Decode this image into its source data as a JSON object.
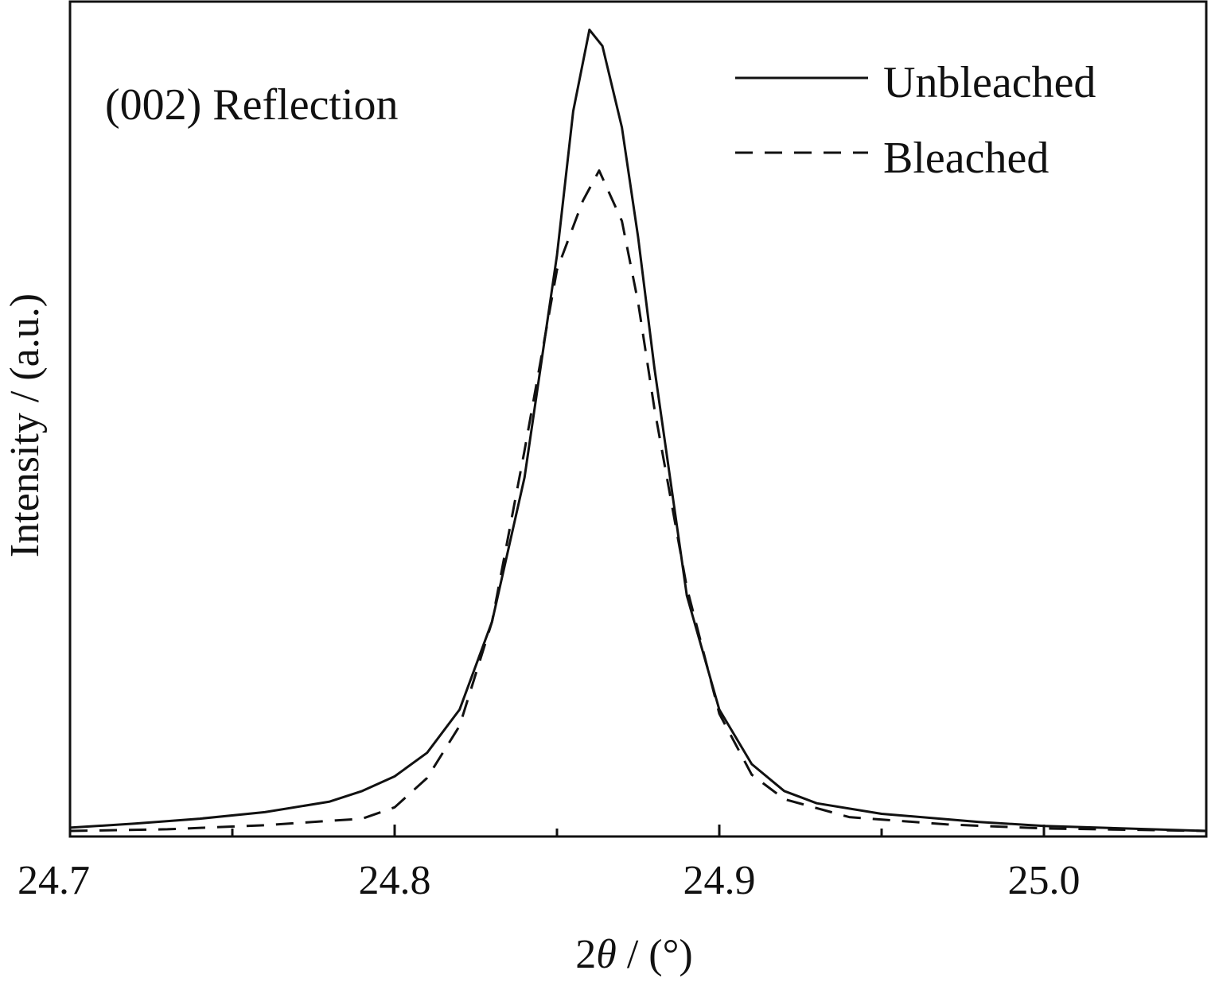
{
  "chart_data": {
    "type": "line",
    "title": "",
    "annotation": "(002) Reflection",
    "xlabel": "2θ / (°)",
    "xlabel_parts": {
      "prefix": "2",
      "symbol": "θ",
      "suffix": " / (°)"
    },
    "ylabel": "Intensity / (a.u.)",
    "xlim": [
      24.7,
      25.05
    ],
    "ylim": [
      0,
      1.0
    ],
    "x_ticks_major": [
      24.7,
      24.8,
      24.9,
      25.0
    ],
    "x_tick_labels": [
      "24.7",
      "24.8",
      "24.9",
      "25.0"
    ],
    "x_ticks_minor": [
      24.75,
      24.85,
      24.95
    ],
    "grid": false,
    "legend_placement": "top-right",
    "colors": {
      "line": "#111111",
      "frame": "#111111",
      "background": "#ffffff"
    },
    "series": [
      {
        "name": "Unbleached",
        "style": "solid",
        "points": [
          [
            24.7,
            0.005
          ],
          [
            24.72,
            0.01
          ],
          [
            24.74,
            0.016
          ],
          [
            24.76,
            0.024
          ],
          [
            24.78,
            0.037
          ],
          [
            24.79,
            0.05
          ],
          [
            24.8,
            0.068
          ],
          [
            24.81,
            0.097
          ],
          [
            24.82,
            0.15
          ],
          [
            24.83,
            0.258
          ],
          [
            24.84,
            0.435
          ],
          [
            24.85,
            0.708
          ],
          [
            24.855,
            0.885
          ],
          [
            24.86,
            0.985
          ],
          [
            24.864,
            0.965
          ],
          [
            24.87,
            0.865
          ],
          [
            24.875,
            0.73
          ],
          [
            24.88,
            0.57
          ],
          [
            24.89,
            0.29
          ],
          [
            24.9,
            0.15
          ],
          [
            24.91,
            0.083
          ],
          [
            24.92,
            0.05
          ],
          [
            24.93,
            0.035
          ],
          [
            24.95,
            0.022
          ],
          [
            24.98,
            0.012
          ],
          [
            25.0,
            0.007
          ],
          [
            25.05,
            0.001
          ]
        ]
      },
      {
        "name": "Bleached",
        "style": "dashed",
        "points": [
          [
            24.7,
            0.001
          ],
          [
            24.73,
            0.003
          ],
          [
            24.76,
            0.008
          ],
          [
            24.79,
            0.016
          ],
          [
            24.8,
            0.03
          ],
          [
            24.81,
            0.066
          ],
          [
            24.82,
            0.13
          ],
          [
            24.83,
            0.258
          ],
          [
            24.84,
            0.468
          ],
          [
            24.85,
            0.69
          ],
          [
            24.858,
            0.775
          ],
          [
            24.863,
            0.812
          ],
          [
            24.87,
            0.75
          ],
          [
            24.875,
            0.65
          ],
          [
            24.88,
            0.52
          ],
          [
            24.89,
            0.3
          ],
          [
            24.9,
            0.145
          ],
          [
            24.91,
            0.07
          ],
          [
            24.92,
            0.04
          ],
          [
            24.94,
            0.018
          ],
          [
            24.97,
            0.009
          ],
          [
            25.0,
            0.004
          ],
          [
            25.05,
            0.001
          ]
        ]
      }
    ]
  }
}
